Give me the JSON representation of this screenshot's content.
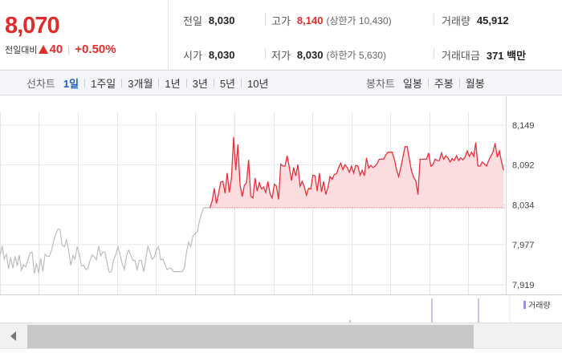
{
  "quote": {
    "current_price": "8,070",
    "change_label": "전일대비",
    "change_amount": "40",
    "change_rate": "+0.50%",
    "stats": {
      "prev_close": {
        "label": "전일",
        "value": "8,030"
      },
      "high": {
        "label": "고가",
        "value": "8,140",
        "limit": "(상한가 10,430)"
      },
      "volume": {
        "label": "거래량",
        "value": "45,912"
      },
      "open": {
        "label": "시가",
        "value": "8,030"
      },
      "low": {
        "label": "저가",
        "value": "8,030",
        "limit": "(하한가 5,630)"
      },
      "trade_value": {
        "label": "거래대금",
        "value": "371 백만"
      }
    }
  },
  "toolbar": {
    "line_chart_title": "선차트",
    "periods": [
      "1일",
      "1주일",
      "3개월",
      "1년",
      "3년",
      "5년",
      "10년"
    ],
    "active_period": "1일",
    "candle_chart_title": "봉차트",
    "candle_periods": [
      "일봉",
      "주봉",
      "월봉"
    ]
  },
  "chart": {
    "y_ticks": [
      "8,149",
      "8,092",
      "8,034",
      "7,977",
      "7,919"
    ],
    "colors": {
      "up": "#e8303b",
      "up_fill": "#fbdcdf",
      "prev": "#bdbdbd",
      "grid": "#e6e6e6"
    }
  },
  "chart_data": {
    "type": "line",
    "ylim": [
      7919,
      8149
    ],
    "ytick_labels": [
      "8,149",
      "8,092",
      "8,034",
      "7,977",
      "7,919"
    ],
    "baseline": 8030,
    "series": [
      {
        "values_before_open": [
          7962,
          7975,
          7956,
          7963,
          7942,
          7958,
          7943,
          7960,
          7946,
          7962,
          7940,
          7948,
          7945,
          7954,
          7965,
          7966,
          7935,
          7950,
          7936,
          7957,
          7938,
          7963,
          7960,
          7960,
          7968,
          7982,
          7992,
          7999,
          7999,
          7976,
          7974,
          7984,
          7970,
          7947,
          7961,
          7956,
          7974,
          7963,
          7946,
          7947,
          7941,
          7943,
          7954,
          7962,
          7959,
          7955,
          7975,
          7961,
          7966,
          7966,
          7950,
          7937,
          7938,
          7955,
          7962,
          7974,
          7963,
          7949,
          7941,
          7960,
          7969,
          7962,
          7954,
          7954,
          7940,
          7954,
          7954,
          7938,
          7955,
          7975,
          7965,
          7956,
          7959,
          7970,
          7974,
          7955,
          7956,
          7948,
          7941,
          7943,
          7942,
          7938,
          7938,
          7938,
          7938,
          7938,
          7943,
          7965,
          7980,
          7974,
          7989,
          7993,
          7995,
          8010,
          8021,
          8030,
          8030,
          8030,
          8030
        ],
        "values_after_open": [
          8030,
          8040,
          8058,
          8036,
          8051,
          8067,
          8068,
          8051,
          8080,
          8052,
          8073,
          8132,
          8084,
          8121,
          8063,
          8046,
          8062,
          8066,
          8099,
          8047,
          8044,
          8073,
          8054,
          8066,
          8057,
          8060,
          8052,
          8068,
          8050,
          8044,
          8064,
          8061,
          8042,
          8093,
          8090,
          8090,
          8105,
          8088,
          8069,
          8088,
          8076,
          8092,
          8061,
          8068,
          8060,
          8048,
          8058,
          8057,
          8077,
          8076,
          8054,
          8080,
          8053,
          8068,
          8049,
          8059,
          8075,
          8071,
          8078,
          8079,
          8088,
          8094,
          8085,
          8092,
          8088,
          8081,
          8090,
          8080,
          8091,
          8090,
          8077,
          8084,
          8076,
          8102,
          8087,
          8091,
          8088,
          8090,
          8094,
          8100,
          8100,
          8100,
          8106,
          8110,
          8110,
          8110,
          8100,
          8085,
          8075,
          8088,
          8103,
          8118,
          8118,
          8100,
          8083,
          8074,
          8069,
          8049,
          8100,
          8100,
          8100,
          8100,
          8109,
          8090,
          8092,
          8100,
          8098,
          8098,
          8109,
          8100,
          8105,
          8102,
          8096,
          8101,
          8098,
          8105,
          8098,
          8102,
          8099,
          8103,
          8112,
          8104,
          8110,
          8104,
          8124,
          8090,
          8090,
          8096,
          8093,
          8090,
          8098,
          8104,
          8110,
          8123,
          8103,
          8112,
          8096,
          8084
        ]
      }
    ]
  },
  "volume": {
    "legend": "거래량"
  }
}
